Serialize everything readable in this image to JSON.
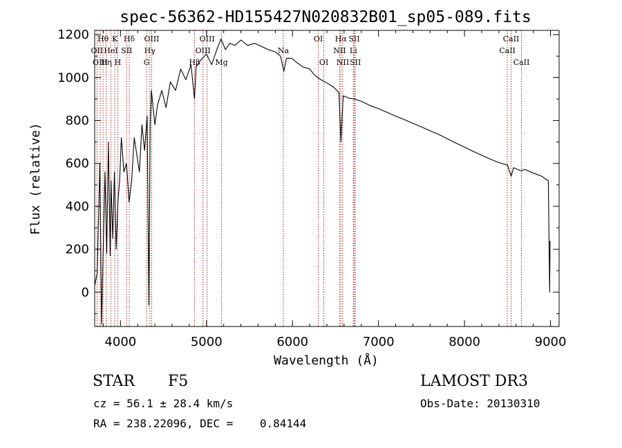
{
  "chart_data": {
    "type": "line",
    "title": "spec-56362-HD155427N020832B01_sp05-089.fits",
    "xlabel": "Wavelength (Å)",
    "ylabel": "Flux (relative)",
    "xlim": [
      3700,
      9100
    ],
    "ylim": [
      -160,
      1220
    ],
    "xticks": [
      4000,
      5000,
      6000,
      7000,
      8000,
      9000
    ],
    "yticks": [
      0,
      200,
      400,
      600,
      800,
      1000,
      1200
    ],
    "series": [
      {
        "name": "spectrum",
        "points": [
          [
            3700,
            30
          ],
          [
            3730,
            90
          ],
          [
            3760,
            600
          ],
          [
            3780,
            -150
          ],
          [
            3800,
            200
          ],
          [
            3820,
            560
          ],
          [
            3840,
            180
          ],
          [
            3860,
            700
          ],
          [
            3880,
            170
          ],
          [
            3890,
            520
          ],
          [
            3910,
            250
          ],
          [
            3930,
            560
          ],
          [
            3950,
            200
          ],
          [
            3970,
            420
          ],
          [
            3990,
            520
          ],
          [
            4010,
            720
          ],
          [
            4040,
            560
          ],
          [
            4070,
            600
          ],
          [
            4100,
            420
          ],
          [
            4130,
            520
          ],
          [
            4160,
            720
          ],
          [
            4190,
            640
          ],
          [
            4220,
            560
          ],
          [
            4250,
            780
          ],
          [
            4280,
            660
          ],
          [
            4310,
            820
          ],
          [
            4330,
            -60
          ],
          [
            4345,
            780
          ],
          [
            4360,
            940
          ],
          [
            4380,
            860
          ],
          [
            4400,
            780
          ],
          [
            4430,
            870
          ],
          [
            4480,
            940
          ],
          [
            4530,
            860
          ],
          [
            4580,
            980
          ],
          [
            4640,
            940
          ],
          [
            4700,
            1040
          ],
          [
            4760,
            990
          ],
          [
            4820,
            1060
          ],
          [
            4860,
            900
          ],
          [
            4880,
            1050
          ],
          [
            4930,
            1080
          ],
          [
            5000,
            1110
          ],
          [
            5060,
            1060
          ],
          [
            5120,
            1130
          ],
          [
            5170,
            1180
          ],
          [
            5220,
            1130
          ],
          [
            5270,
            1160
          ],
          [
            5330,
            1150
          ],
          [
            5400,
            1175
          ],
          [
            5480,
            1150
          ],
          [
            5560,
            1160
          ],
          [
            5640,
            1145
          ],
          [
            5720,
            1130
          ],
          [
            5800,
            1120
          ],
          [
            5860,
            1100
          ],
          [
            5900,
            1030
          ],
          [
            5930,
            1090
          ],
          [
            5990,
            1090
          ],
          [
            6050,
            1070
          ],
          [
            6120,
            1050
          ],
          [
            6200,
            1040
          ],
          [
            6260,
            1010
          ],
          [
            6330,
            990
          ],
          [
            6400,
            975
          ],
          [
            6480,
            955
          ],
          [
            6540,
            930
          ],
          [
            6563,
            700
          ],
          [
            6590,
            915
          ],
          [
            6650,
            905
          ],
          [
            6720,
            900
          ],
          [
            6800,
            890
          ],
          [
            6900,
            870
          ],
          [
            7000,
            855
          ],
          [
            7100,
            838
          ],
          [
            7200,
            820
          ],
          [
            7300,
            804
          ],
          [
            7400,
            787
          ],
          [
            7500,
            770
          ],
          [
            7600,
            752
          ],
          [
            7700,
            735
          ],
          [
            7800,
            715
          ],
          [
            7900,
            695
          ],
          [
            8000,
            676
          ],
          [
            8100,
            656
          ],
          [
            8200,
            638
          ],
          [
            8300,
            620
          ],
          [
            8400,
            604
          ],
          [
            8500,
            592
          ],
          [
            8542,
            540
          ],
          [
            8570,
            580
          ],
          [
            8662,
            565
          ],
          [
            8700,
            572
          ],
          [
            8800,
            555
          ],
          [
            8900,
            540
          ],
          [
            8950,
            525
          ],
          [
            8975,
            520
          ],
          [
            8990,
            0
          ],
          [
            8995,
            240
          ]
        ]
      }
    ],
    "line_markers": [
      {
        "label": "Hθ",
        "wavelength": 3798,
        "row": 1
      },
      {
        "label": "OII",
        "wavelength": 3727,
        "row": 2
      },
      {
        "label": "OIII",
        "wavelength": 3765,
        "row": 3
      },
      {
        "label": "K",
        "wavelength": 3934,
        "row": 1
      },
      {
        "label": "HeI",
        "wavelength": 3889,
        "row": 2
      },
      {
        "label": "Hη",
        "wavelength": 3835,
        "row": 3
      },
      {
        "label": "Hδ",
        "wavelength": 4102,
        "row": 1
      },
      {
        "label": "SII",
        "wavelength": 4072,
        "row": 2
      },
      {
        "label": "H",
        "wavelength": 3969,
        "row": 3
      },
      {
        "label": "OIII",
        "wavelength": 4363,
        "row": 1
      },
      {
        "label": "Hγ",
        "wavelength": 4341,
        "row": 2
      },
      {
        "label": "G",
        "wavelength": 4304,
        "row": 3
      },
      {
        "label": "OIII",
        "wavelength": 5007,
        "row": 1
      },
      {
        "label": "OIII",
        "wavelength": 4959,
        "row": 2
      },
      {
        "label": "Hβ",
        "wavelength": 4861,
        "row": 3
      },
      {
        "label": "Mg",
        "wavelength": 5175,
        "row": 3
      },
      {
        "label": "Na",
        "wavelength": 5893,
        "row": 2
      },
      {
        "label": "OI",
        "wavelength": 6300,
        "row": 1
      },
      {
        "label": "OI",
        "wavelength": 6364,
        "row": 3
      },
      {
        "label": "Hα",
        "wavelength": 6563,
        "row": 1
      },
      {
        "label": "SII",
        "wavelength": 6717,
        "row": 1
      },
      {
        "label": "NII",
        "wavelength": 6548,
        "row": 2
      },
      {
        "label": "Li",
        "wavelength": 6708,
        "row": 2
      },
      {
        "label": "NII",
        "wavelength": 6584,
        "row": 3
      },
      {
        "label": "SII",
        "wavelength": 6731,
        "row": 3
      },
      {
        "label": "CaII",
        "wavelength": 8542,
        "row": 1
      },
      {
        "label": "CaII",
        "wavelength": 8498,
        "row": 2
      },
      {
        "label": "CaII",
        "wavelength": 8662,
        "row": 3
      }
    ],
    "marker_color": "#b22222",
    "line_color": "#000000"
  },
  "info": {
    "object_class": "STAR",
    "subclass": "F5",
    "survey": "LAMOST DR3",
    "redshift": "cz = 56.1 ± 28.4 km/s",
    "obs_date": "Obs-Date: 20130310",
    "coords": "RA = 238.22096, DEC =    0.84144"
  }
}
